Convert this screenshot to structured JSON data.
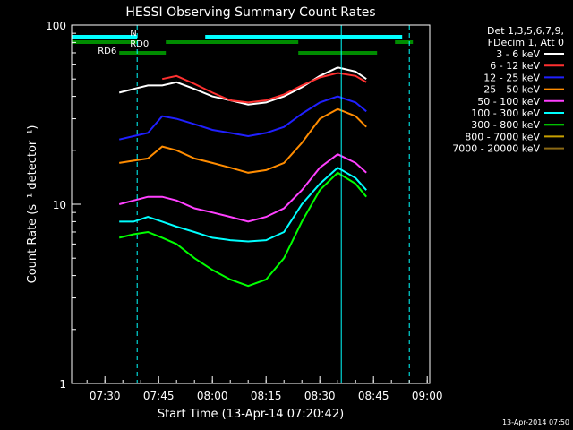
{
  "chart_data": {
    "type": "line",
    "title": "HESSI Observing Summary Count Rates",
    "xlabel": "Start Time (13-Apr-14 07:20:42)",
    "ylabel": "Count Rate (s⁻¹ detector⁻¹)",
    "x_scale": "time (minutes past 07:20:42)",
    "y_scale": "log",
    "xlim": [
      "07:20:42",
      "09:00:42"
    ],
    "ylim": [
      1,
      100
    ],
    "x_ticks": [
      "07:30",
      "07:45",
      "08:00",
      "08:15",
      "08:30",
      "08:45",
      "09:00"
    ],
    "y_ticks": [
      "1",
      "10",
      "100"
    ],
    "grid": false,
    "footer": "13-Apr-2014 07:50",
    "legend": {
      "placement": "right",
      "header": [
        "Det 1,3,5,6,7,9,",
        "FDecim 1, Att 0"
      ]
    },
    "flag_labels": [
      "N",
      "RD0",
      "RD6"
    ],
    "x": [
      "07:34",
      "07:38",
      "07:42",
      "07:46",
      "07:50",
      "07:55",
      "08:00",
      "08:05",
      "08:10",
      "08:15",
      "08:20",
      "08:25",
      "08:30",
      "08:35",
      "08:40",
      "08:43"
    ],
    "series": [
      {
        "name": "3 - 6 keV",
        "color": "#ffffff",
        "values": [
          42,
          44,
          46,
          46,
          48,
          44,
          40,
          38,
          36,
          37,
          40,
          45,
          52,
          58,
          55,
          50
        ]
      },
      {
        "name": "6 - 12 keV",
        "color": "#ff3030",
        "values": [
          null,
          null,
          null,
          50,
          52,
          47,
          42,
          38,
          37,
          38,
          41,
          46,
          51,
          54,
          52,
          48
        ]
      },
      {
        "name": "12 - 25 keV",
        "color": "#2020ff",
        "values": [
          23,
          24,
          25,
          31,
          30,
          28,
          26,
          25,
          24,
          25,
          27,
          32,
          37,
          40,
          37,
          33
        ]
      },
      {
        "name": "25 - 50 keV",
        "color": "#ff8c00",
        "values": [
          17,
          17.5,
          18,
          21,
          20,
          18,
          17,
          16,
          15,
          15.5,
          17,
          22,
          30,
          34,
          31,
          27
        ]
      },
      {
        "name": "50 - 100 keV",
        "color": "#ff40ff",
        "values": [
          10,
          10.5,
          11,
          11,
          10.5,
          9.5,
          9,
          8.5,
          8,
          8.5,
          9.5,
          12,
          16,
          19,
          17,
          15
        ]
      },
      {
        "name": "100 - 300 keV",
        "color": "#00ffff",
        "values": [
          8,
          8,
          8.5,
          8,
          7.5,
          7,
          6.5,
          6.3,
          6.2,
          6.3,
          7,
          10,
          13,
          16,
          14,
          12
        ]
      },
      {
        "name": "300 - 800 keV",
        "color": "#00ff00",
        "values": [
          6.5,
          6.8,
          7,
          6.5,
          6,
          5,
          4.3,
          3.8,
          3.5,
          3.8,
          5,
          8,
          12,
          15,
          13,
          11
        ]
      },
      {
        "name": "800 - 7000 keV",
        "color": "#c8a000",
        "values": [
          null,
          null,
          null,
          null,
          null,
          null,
          null,
          null,
          null,
          null,
          null,
          null,
          null,
          null,
          null,
          null
        ]
      },
      {
        "name": "7000 - 20000 keV",
        "color": "#8b6914",
        "values": [
          null,
          null,
          null,
          null,
          null,
          null,
          null,
          null,
          null,
          null,
          null,
          null,
          null,
          null,
          null,
          null
        ]
      }
    ]
  }
}
